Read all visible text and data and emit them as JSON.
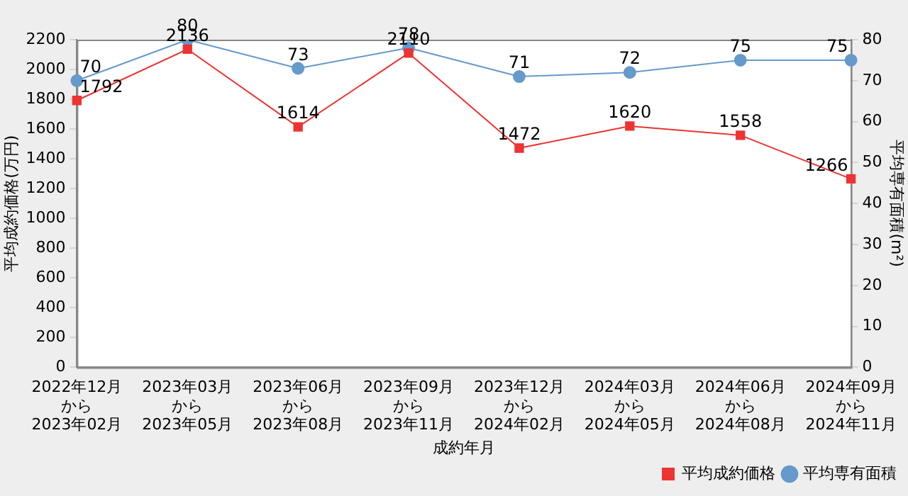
{
  "chart_data": {
    "type": "line",
    "xlabel": "成約年月",
    "ylabel": "平均成約価格(万円)",
    "y2label": "平均専有面積(m²)",
    "categories": [
      "2022年12月から2023年02月",
      "2023年03月から2023年05月",
      "2023年06月から2023年08月",
      "2023年09月から2023年11月",
      "2023年12月から2024年02月",
      "2024年03月から2024年05月",
      "2024年06月から2024年08月",
      "2024年09月から2024年11月"
    ],
    "series": [
      {
        "name": "平均成約価格",
        "color": "#ee3333",
        "marker": "square",
        "values": [
          1792,
          2136,
          1614,
          2110,
          1472,
          1620,
          1558,
          1266
        ]
      },
      {
        "name": "平均専有面積",
        "color": "#6699cc",
        "marker": "circle",
        "axis": "y2",
        "values": [
          70,
          80,
          73,
          78,
          71,
          72,
          75,
          75
        ]
      }
    ],
    "ylim": [
      0,
      2200
    ],
    "yticks": [
      0,
      200,
      400,
      600,
      800,
      1000,
      1200,
      1400,
      1600,
      1800,
      2000,
      2200
    ],
    "y2lim": [
      0,
      80
    ],
    "y2ticks": [
      0,
      10,
      20,
      30,
      40,
      50,
      60,
      70,
      80
    ],
    "grid": false,
    "legend": "bottom right",
    "data_labels": true
  }
}
